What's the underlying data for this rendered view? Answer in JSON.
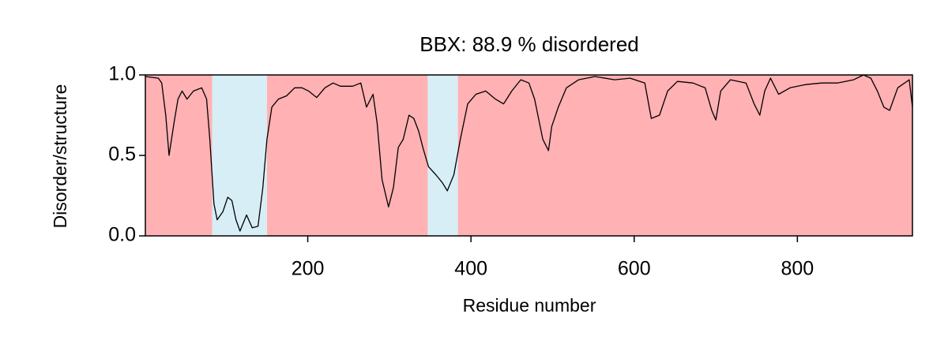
{
  "chart_data": {
    "type": "line",
    "title": "BBX: 88.9 % disordered",
    "xlabel": "Residue number",
    "ylabel": "Disorder/structure",
    "xlim": [
      1,
      941
    ],
    "ylim": [
      0,
      1
    ],
    "xticks": [
      200,
      400,
      600,
      800
    ],
    "yticks": [
      {
        "value": 0,
        "label": "0.0"
      },
      0.5,
      {
        "value": 1,
        "label": "1.0"
      }
    ],
    "regions": [
      {
        "start": 1,
        "end": 83,
        "color": "#ffb1b4"
      },
      {
        "start": 83,
        "end": 150,
        "color": "#d7eef7"
      },
      {
        "start": 150,
        "end": 347,
        "color": "#ffb1b4"
      },
      {
        "start": 347,
        "end": 384,
        "color": "#d7eef7"
      },
      {
        "start": 384,
        "end": 941,
        "color": "#ffb1b4"
      }
    ],
    "color": "#000000",
    "x": [
      1,
      17,
      21,
      26,
      30,
      36,
      41,
      46,
      52,
      60,
      70,
      76,
      80,
      85,
      89,
      96,
      102,
      107,
      112,
      117,
      125,
      132,
      139,
      145,
      150,
      156,
      164,
      174,
      184,
      193,
      201,
      211,
      221,
      231,
      240,
      255,
      265,
      272,
      280,
      285,
      291,
      299,
      305,
      311,
      317,
      324,
      330,
      336,
      341,
      348,
      357,
      365,
      371,
      379,
      387,
      396,
      406,
      418,
      430,
      440,
      450,
      461,
      471,
      478,
      488,
      495,
      499,
      507,
      517,
      532,
      552,
      576,
      595,
      613,
      621,
      631,
      641,
      653,
      672,
      687,
      695,
      700,
      706,
      718,
      737,
      747,
      754,
      760,
      767,
      777,
      791,
      810,
      830,
      849,
      869,
      881,
      890,
      898,
      906,
      913,
      923,
      937,
      941
    ],
    "values": [
      0.99,
      0.98,
      0.95,
      0.75,
      0.5,
      0.7,
      0.85,
      0.9,
      0.85,
      0.9,
      0.92,
      0.85,
      0.6,
      0.2,
      0.1,
      0.15,
      0.24,
      0.22,
      0.1,
      0.03,
      0.13,
      0.05,
      0.06,
      0.3,
      0.6,
      0.8,
      0.85,
      0.87,
      0.92,
      0.92,
      0.9,
      0.86,
      0.92,
      0.95,
      0.93,
      0.93,
      0.95,
      0.8,
      0.88,
      0.7,
      0.35,
      0.18,
      0.3,
      0.55,
      0.6,
      0.75,
      0.73,
      0.65,
      0.55,
      0.43,
      0.38,
      0.33,
      0.28,
      0.38,
      0.6,
      0.82,
      0.88,
      0.9,
      0.85,
      0.82,
      0.9,
      0.97,
      0.95,
      0.85,
      0.6,
      0.53,
      0.68,
      0.8,
      0.92,
      0.97,
      0.99,
      0.97,
      0.98,
      0.95,
      0.73,
      0.75,
      0.9,
      0.96,
      0.95,
      0.92,
      0.78,
      0.72,
      0.9,
      0.97,
      0.95,
      0.82,
      0.75,
      0.9,
      0.98,
      0.88,
      0.92,
      0.94,
      0.95,
      0.95,
      0.97,
      1.0,
      0.98,
      0.9,
      0.8,
      0.78,
      0.92,
      0.97,
      0.8
    ]
  }
}
